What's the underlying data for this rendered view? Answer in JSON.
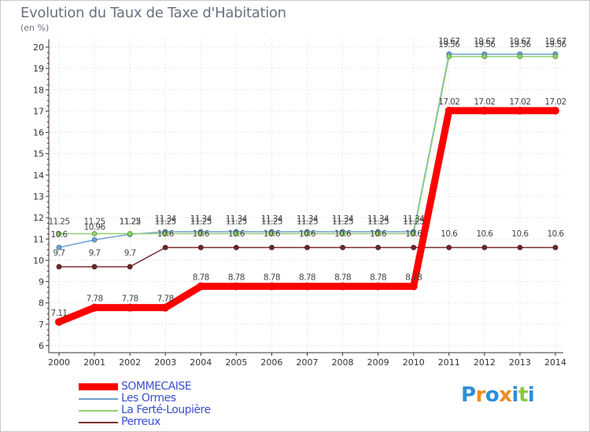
{
  "chart_data": {
    "type": "line",
    "title": "Evolution du Taux de Taxe d'Habitation",
    "ylabel": "(en %)",
    "xlabel": "",
    "ylim": [
      6,
      20
    ],
    "yticks": [
      6,
      7,
      8,
      9,
      10,
      11,
      12,
      13,
      14,
      15,
      16,
      17,
      18,
      19,
      20
    ],
    "categories": [
      "2000",
      "2001",
      "2002",
      "2003",
      "2004",
      "2005",
      "2006",
      "2007",
      "2008",
      "2009",
      "2010",
      "2011",
      "2012",
      "2013",
      "2014"
    ],
    "series": [
      {
        "name": "SOMMECAISE",
        "color": "#ff0000",
        "values": [
          7.11,
          7.78,
          7.78,
          7.78,
          8.78,
          8.78,
          8.78,
          8.78,
          8.78,
          8.78,
          8.78,
          17.02,
          17.02,
          17.02,
          17.02
        ],
        "labels": [
          "7.11",
          "7.78",
          "7.78",
          "7.78",
          "8.78",
          "8.78",
          "8.78",
          "8.78",
          "8.78",
          "8.78",
          "8.78",
          "17.02",
          "17.02",
          "17.02",
          "17.02"
        ]
      },
      {
        "name": "Les Ormes",
        "color": "#6fa0d0",
        "values": [
          10.6,
          10.96,
          11.22,
          11.34,
          11.34,
          11.34,
          11.34,
          11.34,
          11.34,
          11.34,
          11.34,
          19.67,
          19.67,
          19.67,
          19.67
        ],
        "labels": [
          "10.6",
          "10.96",
          "11.22",
          "11.34",
          "11.34",
          "11.34",
          "11.34",
          "11.34",
          "11.34",
          "11.34",
          "11.34",
          "19.67",
          "19.67",
          "19.67",
          "19.67"
        ]
      },
      {
        "name": "La Ferté-Loupière",
        "color": "#90d070",
        "values": [
          11.25,
          11.25,
          11.25,
          11.25,
          11.25,
          11.25,
          11.25,
          11.25,
          11.25,
          11.25,
          11.25,
          19.56,
          19.56,
          19.56,
          19.56
        ],
        "labels": [
          "11.25",
          "11.25",
          "11.25",
          "11.25",
          "11.25",
          "11.25",
          "11.25",
          "11.25",
          "11.25",
          "11.25",
          "11.25",
          "19.56",
          "19.56",
          "19.56",
          "19.56"
        ]
      },
      {
        "name": "Perreux",
        "color": "#7a3030",
        "values": [
          9.7,
          9.7,
          9.7,
          10.6,
          10.6,
          10.6,
          10.6,
          10.6,
          10.6,
          10.6,
          10.6,
          10.6,
          10.6,
          10.6,
          10.6
        ],
        "labels": [
          "9.7",
          "9.7",
          "9.7",
          "10.6",
          "10.6",
          "10.6",
          "10.6",
          "10.6",
          "10.6",
          "10.6",
          "10.6",
          "10.6",
          "10.6",
          "10.6",
          "10.6"
        ]
      }
    ]
  },
  "logo": {
    "text": "Proxiti",
    "letters": [
      "P",
      "r",
      "o",
      "x",
      "i",
      "t",
      "i"
    ],
    "colors": [
      "#2d8fd8",
      "#f08a20",
      "#2d8fd8",
      "#f08a20",
      "#2d8fd8",
      "#8cc63e",
      "#2d8fd8"
    ]
  }
}
